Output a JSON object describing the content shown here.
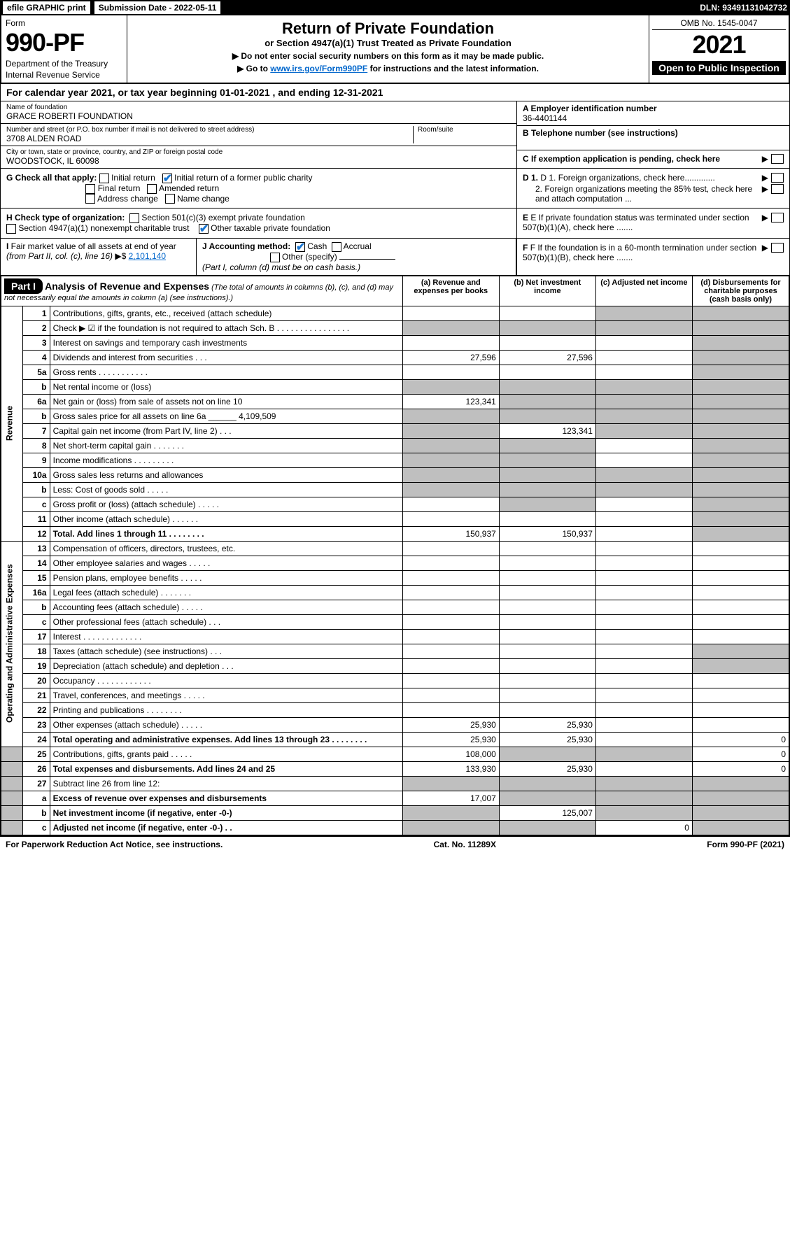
{
  "topbar": {
    "efile": "efile GRAPHIC print",
    "sub_label": "Submission Date - 2022-05-11",
    "dln": "DLN: 93491131042732"
  },
  "header": {
    "form": "Form",
    "num": "990-PF",
    "dept": "Department of the Treasury",
    "irs": "Internal Revenue Service",
    "title": "Return of Private Foundation",
    "subtitle": "or Section 4947(a)(1) Trust Treated as Private Foundation",
    "note1": "▶ Do not enter social security numbers on this form as it may be made public.",
    "note2_pre": "▶ Go to ",
    "note2_link": "www.irs.gov/Form990PF",
    "note2_post": " for instructions and the latest information.",
    "omb": "OMB No. 1545-0047",
    "year": "2021",
    "inspect": "Open to Public Inspection"
  },
  "calyear": "For calendar year 2021, or tax year beginning 01-01-2021           , and ending 12-31-2021",
  "info": {
    "name_lbl": "Name of foundation",
    "name": "GRACE ROBERTI FOUNDATION",
    "addr_lbl": "Number and street (or P.O. box number if mail is not delivered to street address)",
    "addr": "3708 ALDEN ROAD",
    "room_lbl": "Room/suite",
    "city_lbl": "City or town, state or province, country, and ZIP or foreign postal code",
    "city": "WOODSTOCK, IL  60098",
    "a_lbl": "A Employer identification number",
    "a_val": "36-4401144",
    "b_lbl": "B Telephone number (see instructions)",
    "c_lbl": "C If exemption application is pending, check here"
  },
  "g": {
    "label": "G Check all that apply:",
    "opts": [
      "Initial return",
      "Initial return of a former public charity",
      "Final return",
      "Amended return",
      "Address change",
      "Name change"
    ]
  },
  "d": {
    "d1": "D 1. Foreign organizations, check here.............",
    "d2": "2. Foreign organizations meeting the 85% test, check here and attach computation ..."
  },
  "h": {
    "label": "H Check type of organization:",
    "opts": [
      "Section 501(c)(3) exempt private foundation",
      "Section 4947(a)(1) nonexempt charitable trust",
      "Other taxable private foundation"
    ]
  },
  "e": "E  If private foundation status was terminated under section 507(b)(1)(A), check here .......",
  "i": {
    "label": "I Fair market value of all assets at end of year (from Part II, col. (c), line 16) ▶$",
    "val": "2,101,140"
  },
  "j": {
    "label": "J Accounting method:",
    "cash": "Cash",
    "accrual": "Accrual",
    "other": "Other (specify)",
    "note": "(Part I, column (d) must be on cash basis.)"
  },
  "f": "F  If the foundation is in a 60-month termination under section 507(b)(1)(B), check here .......",
  "part1": {
    "label": "Part I",
    "title": "Analysis of Revenue and Expenses",
    "desc": " (The total of amounts in columns (b), (c), and (d) may not necessarily equal the amounts in column (a) (see instructions).)",
    "cols": {
      "a": "(a) Revenue and expenses per books",
      "b": "(b) Net investment income",
      "c": "(c) Adjusted net income",
      "d": "(d) Disbursements for charitable purposes (cash basis only)"
    }
  },
  "sections": {
    "rev": "Revenue",
    "exp": "Operating and Administrative Expenses"
  },
  "rows": [
    {
      "n": "1",
      "d": "Contributions, gifts, grants, etc., received (attach schedule)",
      "a": "",
      "b": "",
      "c": "sh",
      "dv": "sh"
    },
    {
      "n": "2",
      "d": "Check ▶ ☑ if the foundation is not required to attach Sch. B   . . . . . . . . . . . . . . . .",
      "a": "sh",
      "b": "sh",
      "c": "sh",
      "dv": "sh"
    },
    {
      "n": "3",
      "d": "Interest on savings and temporary cash investments",
      "a": "",
      "b": "",
      "c": "",
      "dv": "sh"
    },
    {
      "n": "4",
      "d": "Dividends and interest from securities   . . .",
      "a": "27,596",
      "b": "27,596",
      "c": "",
      "dv": "sh"
    },
    {
      "n": "5a",
      "d": "Gross rents   . . . . . . . . . . .",
      "a": "",
      "b": "",
      "c": "",
      "dv": "sh"
    },
    {
      "n": "b",
      "d": "Net rental income or (loss)",
      "a": "sh",
      "b": "sh",
      "c": "sh",
      "dv": "sh"
    },
    {
      "n": "6a",
      "d": "Net gain or (loss) from sale of assets not on line 10",
      "a": "123,341",
      "b": "sh",
      "c": "sh",
      "dv": "sh"
    },
    {
      "n": "b",
      "d": "Gross sales price for all assets on line 6a ______ 4,109,509",
      "a": "sh",
      "b": "sh",
      "c": "sh",
      "dv": "sh"
    },
    {
      "n": "7",
      "d": "Capital gain net income (from Part IV, line 2)   . . .",
      "a": "sh",
      "b": "123,341",
      "c": "sh",
      "dv": "sh"
    },
    {
      "n": "8",
      "d": "Net short-term capital gain   . . . . . . .",
      "a": "sh",
      "b": "sh",
      "c": "",
      "dv": "sh"
    },
    {
      "n": "9",
      "d": "Income modifications   . . . . . . . . .",
      "a": "sh",
      "b": "sh",
      "c": "",
      "dv": "sh"
    },
    {
      "n": "10a",
      "d": "Gross sales less returns and allowances",
      "a": "sh",
      "b": "sh",
      "c": "sh",
      "dv": "sh"
    },
    {
      "n": "b",
      "d": "Less: Cost of goods sold   . . . . .",
      "a": "sh",
      "b": "sh",
      "c": "sh",
      "dv": "sh"
    },
    {
      "n": "c",
      "d": "Gross profit or (loss) (attach schedule)   . . . . .",
      "a": "",
      "b": "sh",
      "c": "",
      "dv": "sh"
    },
    {
      "n": "11",
      "d": "Other income (attach schedule)   . . . . . .",
      "a": "",
      "b": "",
      "c": "",
      "dv": "sh"
    },
    {
      "n": "12",
      "d": "Total. Add lines 1 through 11   . . . . . . . .",
      "a": "150,937",
      "b": "150,937",
      "c": "",
      "dv": "sh",
      "bold": true
    },
    {
      "n": "13",
      "d": "Compensation of officers, directors, trustees, etc.",
      "a": "",
      "b": "",
      "c": "",
      "dv": ""
    },
    {
      "n": "14",
      "d": "Other employee salaries and wages   . . . . .",
      "a": "",
      "b": "",
      "c": "",
      "dv": ""
    },
    {
      "n": "15",
      "d": "Pension plans, employee benefits   . . . . .",
      "a": "",
      "b": "",
      "c": "",
      "dv": ""
    },
    {
      "n": "16a",
      "d": "Legal fees (attach schedule)   . . . . . . .",
      "a": "",
      "b": "",
      "c": "",
      "dv": ""
    },
    {
      "n": "b",
      "d": "Accounting fees (attach schedule)   . . . . .",
      "a": "",
      "b": "",
      "c": "",
      "dv": ""
    },
    {
      "n": "c",
      "d": "Other professional fees (attach schedule)   . . .",
      "a": "",
      "b": "",
      "c": "",
      "dv": ""
    },
    {
      "n": "17",
      "d": "Interest   . . . . . . . . . . . . .",
      "a": "",
      "b": "",
      "c": "",
      "dv": ""
    },
    {
      "n": "18",
      "d": "Taxes (attach schedule) (see instructions)   . . .",
      "a": "",
      "b": "",
      "c": "",
      "dv": "sh"
    },
    {
      "n": "19",
      "d": "Depreciation (attach schedule) and depletion   . . .",
      "a": "",
      "b": "",
      "c": "",
      "dv": "sh"
    },
    {
      "n": "20",
      "d": "Occupancy   . . . . . . . . . . . .",
      "a": "",
      "b": "",
      "c": "",
      "dv": ""
    },
    {
      "n": "21",
      "d": "Travel, conferences, and meetings   . . . . .",
      "a": "",
      "b": "",
      "c": "",
      "dv": ""
    },
    {
      "n": "22",
      "d": "Printing and publications   . . . . . . . .",
      "a": "",
      "b": "",
      "c": "",
      "dv": ""
    },
    {
      "n": "23",
      "d": "Other expenses (attach schedule)   . . . . .",
      "a": "25,930",
      "b": "25,930",
      "c": "",
      "dv": ""
    },
    {
      "n": "24",
      "d": "Total operating and administrative expenses. Add lines 13 through 23   . . . . . . . .",
      "a": "25,930",
      "b": "25,930",
      "c": "",
      "dv": "0",
      "bold": true
    },
    {
      "n": "25",
      "d": "Contributions, gifts, grants paid   . . . . .",
      "a": "108,000",
      "b": "sh",
      "c": "sh",
      "dv": "0"
    },
    {
      "n": "26",
      "d": "Total expenses and disbursements. Add lines 24 and 25",
      "a": "133,930",
      "b": "25,930",
      "c": "",
      "dv": "0",
      "bold": true
    },
    {
      "n": "27",
      "d": "Subtract line 26 from line 12:",
      "a": "sh",
      "b": "sh",
      "c": "sh",
      "dv": "sh"
    },
    {
      "n": "a",
      "d": "Excess of revenue over expenses and disbursements",
      "a": "17,007",
      "b": "sh",
      "c": "sh",
      "dv": "sh",
      "bold": true
    },
    {
      "n": "b",
      "d": "Net investment income (if negative, enter -0-)",
      "a": "sh",
      "b": "125,007",
      "c": "sh",
      "dv": "sh",
      "bold": true
    },
    {
      "n": "c",
      "d": "Adjusted net income (if negative, enter -0-)   . .",
      "a": "sh",
      "b": "sh",
      "c": "0",
      "dv": "sh",
      "bold": true
    }
  ],
  "footer": {
    "left": "For Paperwork Reduction Act Notice, see instructions.",
    "mid": "Cat. No. 11289X",
    "right": "Form 990-PF (2021)"
  }
}
